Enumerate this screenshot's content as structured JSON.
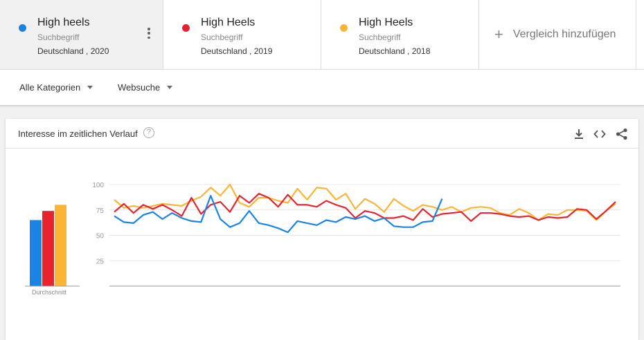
{
  "terms": [
    {
      "name": "High heels",
      "type": "Suchbegriff",
      "geo": "Deutschland , 2020",
      "color": "#1a84e5"
    },
    {
      "name": "High Heels",
      "type": "Suchbegriff",
      "geo": "Deutschland , 2019",
      "color": "#e8232f"
    },
    {
      "name": "High Heels",
      "type": "Suchbegriff",
      "geo": "Deutschland , 2018",
      "color": "#fbb532"
    }
  ],
  "add_compare": {
    "label": "Vergleich hinzufügen",
    "icon": "plus-icon"
  },
  "filters": {
    "category": "Alle Kategorien",
    "search_type": "Websuche"
  },
  "card": {
    "title": "Interesse im zeitlichen Verlauf",
    "help_glyph": "?",
    "icons": [
      "download-icon",
      "embed-icon",
      "share-icon"
    ]
  },
  "chart_data": {
    "type": "line",
    "y_ticks": [
      "100",
      "75",
      "50",
      "25"
    ],
    "ylim": [
      0,
      100
    ],
    "grid": true,
    "average_label": "Durchschnitt",
    "averages": [
      65,
      74,
      80
    ],
    "x_count": 53,
    "series": [
      {
        "color": "#1a84e5",
        "values": [
          69,
          63,
          62,
          70,
          73,
          66,
          72,
          67,
          64,
          63,
          89,
          66,
          58,
          62,
          74,
          62,
          60,
          57,
          53,
          64,
          62,
          60,
          65,
          63,
          68,
          66,
          69,
          64,
          67,
          59,
          58,
          58,
          63,
          64,
          86
        ]
      },
      {
        "color": "#e8232f",
        "values": [
          73,
          81,
          72,
          80,
          76,
          80,
          75,
          69,
          87,
          71,
          80,
          83,
          73,
          89,
          82,
          91,
          87,
          78,
          90,
          80,
          80,
          78,
          84,
          80,
          77,
          67,
          74,
          72,
          67,
          67,
          69,
          65,
          76,
          68,
          71,
          72,
          73,
          64,
          72,
          72,
          71,
          69,
          68,
          69,
          65,
          68,
          67,
          68,
          76,
          75,
          66,
          74,
          83
        ]
      },
      {
        "color": "#fbb532",
        "values": [
          85,
          77,
          79,
          77,
          79,
          81,
          80,
          79,
          84,
          88,
          97,
          89,
          100,
          82,
          78,
          87,
          87,
          84,
          82,
          96,
          85,
          97,
          96,
          85,
          91,
          76,
          86,
          81,
          73,
          86,
          79,
          74,
          80,
          78,
          75,
          78,
          73,
          77,
          78,
          77,
          72,
          70,
          76,
          72,
          65,
          71,
          70,
          75,
          75,
          74,
          65,
          74,
          81
        ]
      }
    ]
  }
}
